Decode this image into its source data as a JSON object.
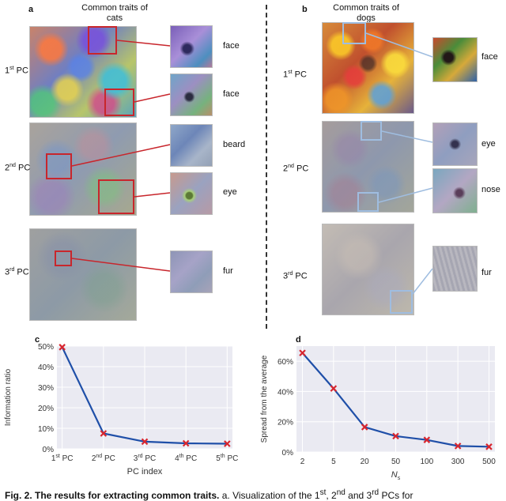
{
  "panel_a": {
    "letter": "a",
    "title_line1": "Common traits of",
    "title_line2": "cats",
    "rows": [
      {
        "num": "1",
        "sup": "st",
        "suffix": " PC",
        "traits": [
          "face",
          "face"
        ]
      },
      {
        "num": "2",
        "sup": "nd",
        "suffix": " PC",
        "traits": [
          "beard",
          "eye"
        ]
      },
      {
        "num": "3",
        "sup": "rd",
        "suffix": " PC",
        "traits": [
          "fur"
        ]
      }
    ]
  },
  "panel_b": {
    "letter": "b",
    "title_line1": "Common traits of",
    "title_line2": "dogs",
    "rows": [
      {
        "num": "1",
        "sup": "st",
        "suffix": " PC",
        "traits": [
          "face"
        ]
      },
      {
        "num": "2",
        "sup": "nd",
        "suffix": " PC",
        "traits": [
          "eye",
          "nose"
        ]
      },
      {
        "num": "3",
        "sup": "rd",
        "suffix": " PC",
        "traits": [
          "fur"
        ]
      }
    ]
  },
  "chart_data": [
    {
      "panel": "c",
      "type": "line",
      "x_tick_labels": [
        {
          "num": "1",
          "sup": "st",
          "suffix": " PC"
        },
        {
          "num": "2",
          "sup": "nd",
          "suffix": " PC"
        },
        {
          "num": "3",
          "sup": "rd",
          "suffix": " PC"
        },
        {
          "num": "4",
          "sup": "th",
          "suffix": " PC"
        },
        {
          "num": "5",
          "sup": "th",
          "suffix": " PC"
        }
      ],
      "values": [
        49.5,
        7.5,
        3.5,
        2.7,
        2.5
      ],
      "ylim": [
        0,
        50
      ],
      "y_ticks": [
        0,
        10,
        20,
        30,
        40,
        50
      ],
      "y_tick_labels": [
        "0%",
        "10%",
        "20%",
        "30%",
        "40%",
        "50%"
      ],
      "xlabel": "PC index",
      "ylabel": "Information ratio",
      "grid": true,
      "line_color": "#1f4fa8",
      "marker_color": "#d8262f"
    },
    {
      "panel": "d",
      "type": "line",
      "categories": [
        "2",
        "5",
        "20",
        "50",
        "100",
        "300",
        "500"
      ],
      "values": [
        65.5,
        42,
        16.5,
        10.5,
        8,
        4,
        3.5
      ],
      "ylim": [
        0,
        70
      ],
      "y_ticks": [
        0,
        20,
        40,
        60
      ],
      "y_tick_labels": [
        "0%",
        "20%",
        "40%",
        "60%"
      ],
      "xlabel_main": "N",
      "xlabel_sub": "s",
      "ylabel": "Spread from the average",
      "grid": true,
      "line_color": "#1f4fa8",
      "marker_color": "#d8262f"
    }
  ],
  "caption": {
    "lead": "Fig. 2. The results for extracting common traits.",
    "text": "  a. Visualization of the 1",
    "sup1": "st",
    "text2": ", 2",
    "sup2": "nd",
    "text3": " and 3",
    "sup3": "rd",
    "text4": " PCs for"
  }
}
